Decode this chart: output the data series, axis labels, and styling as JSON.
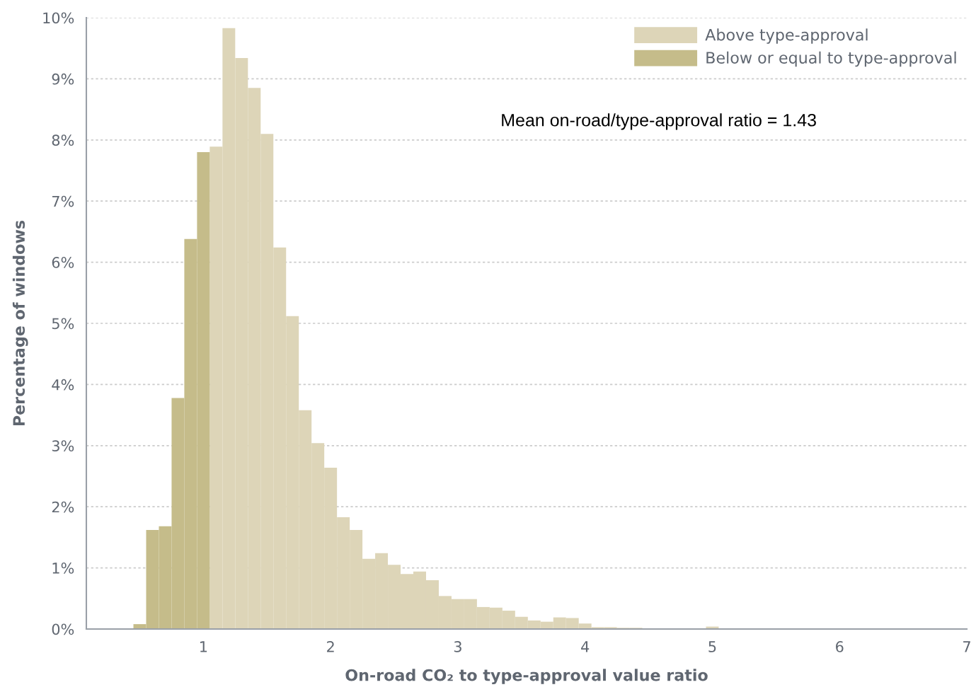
{
  "chart_data": {
    "type": "histogram",
    "xlabel": "On-road CO₂ to type-approval value ratio",
    "ylabel": "Percentage of windows",
    "annotations": [
      "Mean on-road/type-approval ratio = 1.43"
    ],
    "bins": [
      0.45,
      0.55,
      0.65,
      0.75,
      0.85,
      0.95,
      1.05,
      1.15,
      1.25,
      1.35,
      1.45,
      1.55,
      1.65,
      1.75,
      1.85,
      1.95,
      2.05,
      2.15,
      2.25,
      2.35,
      2.45,
      2.55,
      2.65,
      2.75,
      2.85,
      2.95,
      3.05,
      3.15,
      3.25,
      3.35,
      3.45,
      3.55,
      3.65,
      3.75,
      3.85,
      3.95,
      4.05,
      4.15,
      4.25,
      4.35,
      4.45,
      4.55,
      4.65,
      4.75,
      4.85,
      4.95,
      5.05
    ],
    "series": [
      {
        "name": "Above type-approval",
        "color": "#ddd5b8",
        "values": [
          null,
          null,
          null,
          null,
          null,
          null,
          7.89,
          9.83,
          9.34,
          8.85,
          8.1,
          6.24,
          5.12,
          3.58,
          3.04,
          2.64,
          1.83,
          1.62,
          1.15,
          1.24,
          1.05,
          0.9,
          0.94,
          0.8,
          0.54,
          0.49,
          0.49,
          0.36,
          0.35,
          0.3,
          0.2,
          0.14,
          0.12,
          0.19,
          0.18,
          0.09,
          0.03,
          0.03,
          0.02,
          0.02,
          0.01,
          0.01,
          0.01,
          0.01,
          0,
          0.04
        ]
      },
      {
        "name": "Below or equal to type-approval",
        "color": "#c5bc8a",
        "values": [
          0.08,
          1.62,
          1.68,
          3.78,
          6.38,
          7.8,
          null,
          null,
          null,
          null,
          null,
          null,
          null,
          null,
          null,
          null,
          null,
          null,
          null,
          null,
          null,
          null,
          null,
          null,
          null,
          null,
          null,
          null,
          null,
          null,
          null,
          null,
          null,
          null,
          null,
          null,
          null,
          null,
          null,
          null,
          null,
          null,
          null,
          null,
          null,
          null
        ]
      }
    ],
    "xlim": [
      0.08,
      7
    ],
    "xticks": [
      1,
      2,
      3,
      4,
      5,
      6,
      7
    ],
    "ylim": [
      0,
      10
    ],
    "yticks": [
      {
        "value": 0,
        "label": "0%"
      },
      {
        "value": 1,
        "label": "1%"
      },
      {
        "value": 2,
        "label": "2%"
      },
      {
        "value": 3,
        "label": "3%"
      },
      {
        "value": 4,
        "label": "4%"
      },
      {
        "value": 5,
        "label": "5%"
      },
      {
        "value": 6,
        "label": "6%"
      },
      {
        "value": 7,
        "label": "7%"
      },
      {
        "value": 8,
        "label": "8%"
      },
      {
        "value": 9,
        "label": "9%"
      },
      {
        "value": 10,
        "label": "10%"
      }
    ],
    "grid": "y",
    "legend": "top right"
  }
}
